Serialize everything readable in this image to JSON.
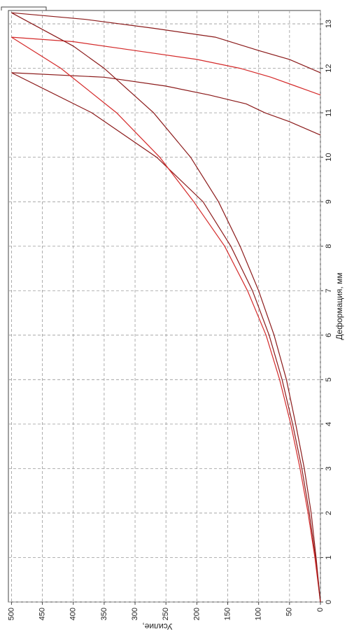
{
  "chart_data": {
    "type": "line",
    "rotated": true,
    "xlabel": "Деформация, мм",
    "ylabel": "Усилие,",
    "xlim": [
      0,
      13.3
    ],
    "xticks": [
      0,
      1,
      2,
      3,
      4,
      5,
      6,
      7,
      8,
      9,
      10,
      11,
      12,
      13
    ],
    "ylim": [
      0,
      505
    ],
    "yticks": [
      0,
      50,
      100,
      150,
      200,
      250,
      300,
      350,
      400,
      450,
      500
    ],
    "grid": true,
    "series": [
      {
        "color": "#8b1a1a",
        "x": [
          0,
          1,
          2,
          3,
          4,
          5,
          6,
          7,
          8,
          9,
          10,
          11,
          11.9
        ],
        "values": [
          0,
          8,
          18,
          30,
          45,
          62,
          83,
          110,
          145,
          190,
          265,
          370,
          500
        ]
      },
      {
        "color": "#8b1a1a",
        "x": [
          11.9,
          11.8,
          11.6,
          11.4,
          11.2,
          11,
          10.8,
          10.5
        ],
        "values": [
          500,
          350,
          250,
          180,
          120,
          90,
          50,
          0
        ]
      },
      {
        "color": "#d42a2a",
        "x": [
          0,
          1,
          2,
          3,
          4,
          5,
          6,
          7,
          8,
          9,
          10,
          11,
          12,
          12.7
        ],
        "values": [
          0,
          9,
          20,
          33,
          48,
          66,
          88,
          118,
          155,
          205,
          260,
          330,
          420,
          500
        ]
      },
      {
        "color": "#d42a2a",
        "x": [
          12.7,
          12.6,
          12.4,
          12.2,
          12,
          11.8,
          11.6,
          11.4
        ],
        "values": [
          500,
          400,
          300,
          200,
          130,
          80,
          40,
          0
        ]
      },
      {
        "color": "#8b1a1a",
        "x": [
          0,
          1,
          2,
          3,
          4,
          5,
          6,
          7,
          8,
          9,
          10,
          11,
          12,
          12.5,
          13.25
        ],
        "values": [
          0,
          7,
          15,
          26,
          40,
          55,
          75,
          100,
          130,
          165,
          210,
          270,
          350,
          400,
          500
        ]
      },
      {
        "color": "#8b1a1a",
        "x": [
          13.25,
          13.1,
          12.9,
          12.7,
          12.4,
          12.2,
          11.9
        ],
        "values": [
          500,
          380,
          270,
          170,
          100,
          50,
          0
        ]
      }
    ]
  }
}
